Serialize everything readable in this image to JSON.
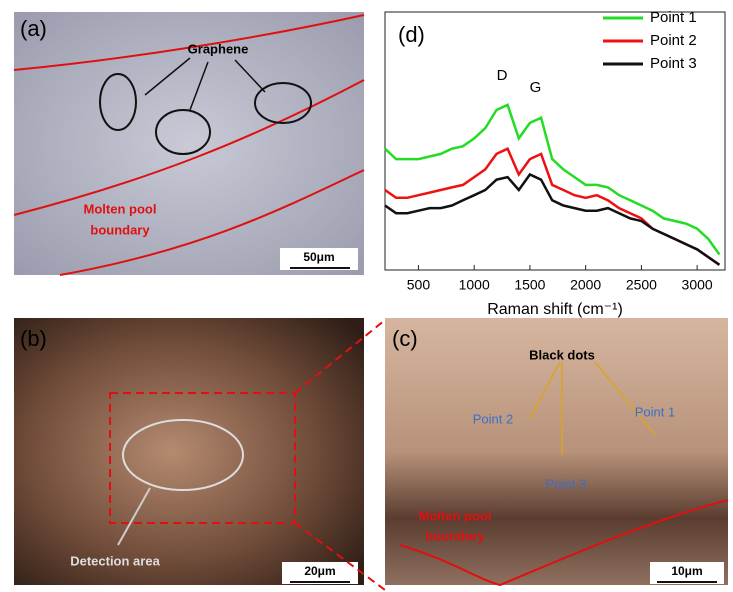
{
  "chart_data": {
    "type": "line",
    "panel_label": "(d)",
    "x_label": "Raman shift (cm⁻¹)",
    "annotations": [
      {
        "text": "D",
        "x": 1250
      },
      {
        "text": "G",
        "x": 1550
      }
    ],
    "x": [
      200,
      300,
      400,
      500,
      600,
      700,
      800,
      900,
      1000,
      1100,
      1200,
      1300,
      1400,
      1500,
      1600,
      1700,
      1800,
      1900,
      2000,
      2100,
      2200,
      2300,
      2400,
      2500,
      2600,
      2700,
      2800,
      2900,
      3000,
      3100,
      3200
    ],
    "series": [
      {
        "name": "Point 1",
        "color": "#22dd22",
        "values": [
          47,
          43,
          43,
          43,
          44,
          45,
          47,
          48,
          51,
          55,
          62,
          64,
          51,
          57,
          59,
          43,
          39,
          36,
          33,
          33,
          32,
          29,
          27,
          25,
          23,
          20,
          19,
          18,
          16,
          12,
          6
        ]
      },
      {
        "name": "Point 2",
        "color": "#ee1111",
        "values": [
          31,
          28,
          28,
          29,
          30,
          31,
          32,
          33,
          36,
          39,
          45,
          47,
          37,
          43,
          45,
          33,
          31,
          29,
          28,
          29,
          27,
          24,
          22,
          20,
          16,
          14,
          12,
          10,
          8,
          5,
          2
        ]
      },
      {
        "name": "Point 3",
        "color": "#111111",
        "values": [
          25,
          22,
          22,
          23,
          24,
          24,
          25,
          27,
          29,
          31,
          35,
          36,
          31,
          37,
          35,
          27,
          25,
          24,
          23,
          23,
          24,
          22,
          20,
          19,
          16,
          14,
          12,
          10,
          8,
          5,
          2
        ]
      }
    ],
    "xlim": [
      200,
      3250
    ],
    "xticks": [
      500,
      1000,
      1500,
      2000,
      2500,
      3000
    ],
    "ylim": [
      0,
      100
    ],
    "legend": "upper-right"
  },
  "panels": {
    "a": {
      "label": "(a)",
      "graphene": "Graphene",
      "boundary": [
        "Molten pool",
        "boundary"
      ],
      "scale": "50μm"
    },
    "b": {
      "label": "(b)",
      "detection": "Detection area",
      "scale": "20μm"
    },
    "c": {
      "label": "(c)",
      "dots": "Black dots",
      "point2": "Point 2",
      "point1": "Point 1",
      "point3": "Point 3",
      "boundary": [
        "Molten pool",
        "boundary"
      ],
      "scale": "10μm"
    }
  }
}
